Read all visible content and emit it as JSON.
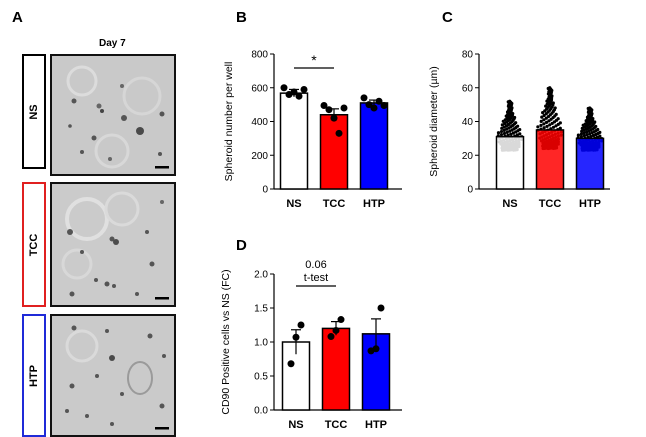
{
  "panel_a": {
    "letter": "A",
    "day_label": "Day 7",
    "rows": [
      {
        "label": "NS",
        "border_color": "#000000"
      },
      {
        "label": "TCC",
        "border_color": "#e02020"
      },
      {
        "label": "HTP",
        "border_color": "#1f2ad8"
      }
    ]
  },
  "chart_data": [
    {
      "panel": "B",
      "type": "bar",
      "ylabel": "Spheroid number per well",
      "categories": [
        "NS",
        "TCC",
        "HTP"
      ],
      "colors": [
        "#ffffff",
        "#ff0000",
        "#0000ff"
      ],
      "values": [
        568,
        440,
        510
      ],
      "errors": [
        22,
        35,
        17
      ],
      "points": [
        [
          600,
          560,
          575,
          550,
          590
        ],
        [
          495,
          470,
          420,
          330,
          480
        ],
        [
          540,
          500,
          480,
          520,
          495
        ]
      ],
      "ylim": [
        0,
        800
      ],
      "yticks": [
        0,
        200,
        400,
        600,
        800
      ],
      "annotation": {
        "text": "*",
        "from": 0,
        "to": 1
      }
    },
    {
      "panel": "C",
      "type": "bar",
      "ylabel": "Spheroid diameter (µm)",
      "categories": [
        "NS",
        "TCC",
        "HTP"
      ],
      "colors": [
        "#ffffff",
        "#ff0000",
        "#0000ff"
      ],
      "values": [
        31,
        35,
        30
      ],
      "spread": [
        [
          23,
          52
        ],
        [
          24,
          60
        ],
        [
          23,
          48
        ]
      ],
      "ylim": [
        0,
        80
      ],
      "yticks": [
        0,
        20,
        40,
        60,
        80
      ]
    },
    {
      "panel": "D",
      "type": "bar",
      "ylabel": "CD90 Positive cells vs NS (FC)",
      "categories": [
        "NS",
        "TCC",
        "HTP"
      ],
      "colors": [
        "#ffffff",
        "#ff0000",
        "#0000ff"
      ],
      "values": [
        1.0,
        1.2,
        1.12
      ],
      "errors": [
        0.18,
        0.1,
        0.22
      ],
      "points": [
        [
          0.68,
          1.07,
          1.25
        ],
        [
          1.08,
          1.17,
          1.33
        ],
        [
          0.87,
          0.9,
          1.5
        ]
      ],
      "ylim": [
        0,
        2.0
      ],
      "yticks": [
        0.0,
        0.5,
        1.0,
        1.5,
        2.0
      ],
      "annotation": {
        "text": "0.06",
        "text2": "t-test",
        "from": 0,
        "to": 1
      }
    }
  ]
}
